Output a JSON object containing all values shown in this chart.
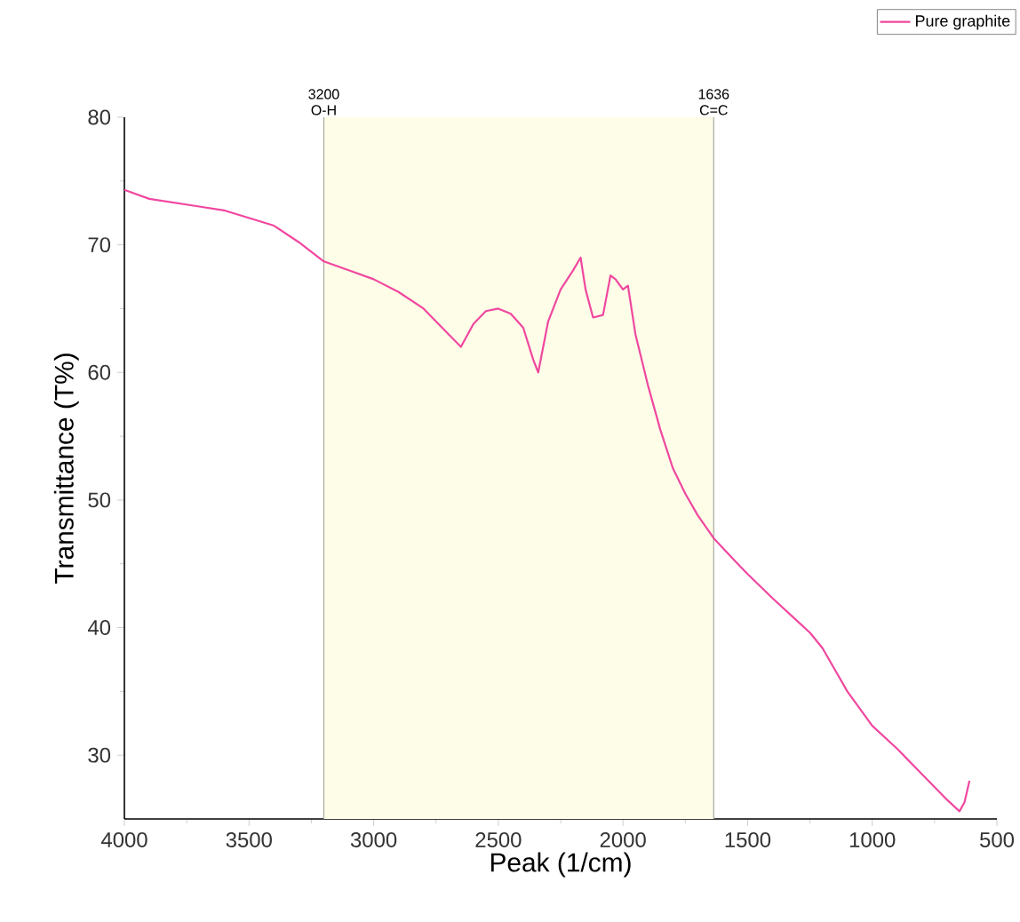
{
  "chart_data": {
    "type": "line",
    "xlabel": "Peak (1/cm)",
    "ylabel": "Transmittance (T%)",
    "xlim": [
      4000,
      500
    ],
    "ylim": [
      25,
      80
    ],
    "xticks": [
      4000,
      3500,
      3000,
      2500,
      2000,
      1500,
      1000,
      500
    ],
    "yticks": [
      30,
      40,
      50,
      60,
      70,
      80
    ],
    "legend": "top right",
    "grid": false,
    "series": [
      {
        "name": "Pure graphite",
        "color": "#f0479f",
        "x": [
          4000,
          3900,
          3800,
          3700,
          3600,
          3500,
          3400,
          3300,
          3200,
          3100,
          3000,
          2900,
          2800,
          2700,
          2650,
          2600,
          2550,
          2500,
          2450,
          2400,
          2360,
          2340,
          2300,
          2250,
          2200,
          2170,
          2150,
          2120,
          2080,
          2050,
          2030,
          2000,
          1980,
          1950,
          1900,
          1850,
          1800,
          1750,
          1700,
          1636,
          1550,
          1500,
          1400,
          1300,
          1250,
          1200,
          1100,
          1000,
          900,
          800,
          700,
          650,
          630,
          610
        ],
        "values": [
          74.3,
          73.6,
          73.3,
          73.0,
          72.7,
          72.1,
          71.5,
          70.2,
          68.7,
          68.0,
          67.3,
          66.3,
          65.0,
          63.0,
          62.0,
          63.8,
          64.8,
          65.0,
          64.6,
          63.5,
          61.0,
          60.0,
          64.0,
          66.5,
          68.0,
          69.0,
          66.5,
          64.3,
          64.5,
          67.6,
          67.3,
          66.5,
          66.8,
          63.0,
          59.0,
          55.5,
          52.5,
          50.5,
          48.8,
          47.0,
          45.2,
          44.2,
          42.3,
          40.5,
          39.6,
          38.4,
          35.0,
          32.3,
          30.5,
          28.5,
          26.5,
          25.6,
          26.3,
          28.0
        ]
      }
    ],
    "ref_lines": [
      {
        "axis": "x",
        "value": 3200,
        "label": "3200 O-H",
        "color": "#a8a8a0"
      },
      {
        "axis": "x",
        "value": 1636,
        "label": "1636 C=C",
        "color": "#a8a8a0"
      }
    ],
    "bands": [
      {
        "axis": "x",
        "from": 3200,
        "to": 1636,
        "color": "#fdfde8"
      }
    ]
  }
}
